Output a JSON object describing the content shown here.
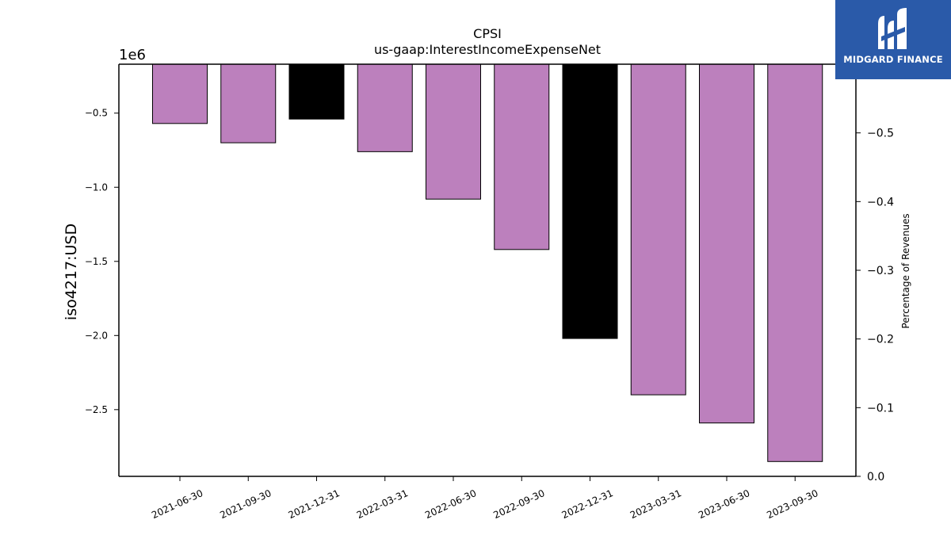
{
  "brand": {
    "name": "MIDGARD FINANCE",
    "color": "#2a5aa9"
  },
  "chart_data": {
    "type": "bar",
    "title": "CPSI",
    "subtitle": "us-gaap:InterestIncomeExpenseNet",
    "ylabel": "iso4217:USD",
    "y_offset_label": "1e6",
    "y2label": "Percentage of Revenues",
    "categories": [
      "2021-06-30",
      "2021-09-30",
      "2021-12-31",
      "2022-03-31",
      "2022-06-30",
      "2022-09-30",
      "2022-12-31",
      "2023-03-31",
      "2023-06-30",
      "2023-09-30"
    ],
    "values": [
      -570000,
      -700000,
      -540000,
      -760000,
      -1080000,
      -1420000,
      -2020000,
      -2400000,
      -2590000,
      -2850000
    ],
    "bar_colors": [
      "#bc80bd",
      "#bc80bd",
      "#000000",
      "#bc80bd",
      "#bc80bd",
      "#bc80bd",
      "#000000",
      "#bc80bd",
      "#bc80bd",
      "#bc80bd"
    ],
    "ylim": [
      -2.95,
      -0.17
    ],
    "yticks": [
      -0.5,
      -1.0,
      -1.5,
      -2.0,
      -2.5
    ],
    "ytick_labels": [
      "−0.5",
      "−1.0",
      "−1.5",
      "−2.0",
      "−2.5"
    ],
    "y2lim": [
      0.0,
      -0.6
    ],
    "y2ticks": [
      -0.5,
      -0.4,
      -0.3,
      -0.2,
      -0.1,
      0.0
    ],
    "y2tick_labels": [
      "−0.5",
      "−0.4",
      "−0.3",
      "−0.2",
      "−0.1",
      "0.0"
    ],
    "grid": false
  }
}
